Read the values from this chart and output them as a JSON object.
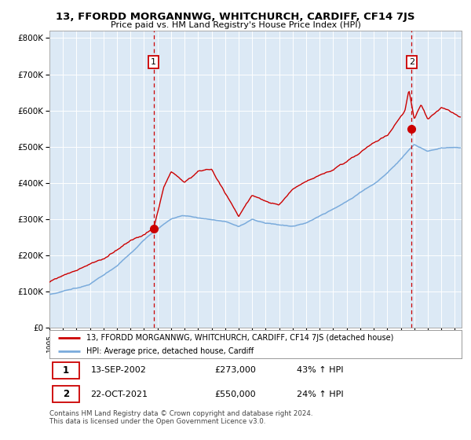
{
  "title": "13, FFORDD MORGANNWG, WHITCHURCH, CARDIFF, CF14 7JS",
  "subtitle": "Price paid vs. HM Land Registry's House Price Index (HPI)",
  "bg_color": "#dce9f5",
  "grid_color": "#ffffff",
  "red_line_color": "#cc0000",
  "blue_line_color": "#7aabdc",
  "marker_color": "#cc0000",
  "vline_color": "#cc0000",
  "ylim": [
    0,
    820000
  ],
  "ytick_labels": [
    "£0",
    "£100K",
    "£200K",
    "£300K",
    "£400K",
    "£500K",
    "£600K",
    "£700K",
    "£800K"
  ],
  "ytick_values": [
    0,
    100000,
    200000,
    300000,
    400000,
    500000,
    600000,
    700000,
    800000
  ],
  "sale1_year": 2002.71,
  "sale1_price": 273000,
  "sale1_label": "1",
  "sale2_year": 2021.81,
  "sale2_price": 550000,
  "sale2_label": "2",
  "legend_line1": "13, FFORDD MORGANNWG, WHITCHURCH, CARDIFF, CF14 7JS (detached house)",
  "legend_line2": "HPI: Average price, detached house, Cardiff",
  "table_row1_num": "1",
  "table_row1_date": "13-SEP-2002",
  "table_row1_price": "£273,000",
  "table_row1_hpi": "43% ↑ HPI",
  "table_row2_num": "2",
  "table_row2_date": "22-OCT-2021",
  "table_row2_price": "£550,000",
  "table_row2_hpi": "24% ↑ HPI",
  "footnote": "Contains HM Land Registry data © Crown copyright and database right 2024.\nThis data is licensed under the Open Government Licence v3.0.",
  "xstart": 1995.0,
  "xend": 2025.5
}
